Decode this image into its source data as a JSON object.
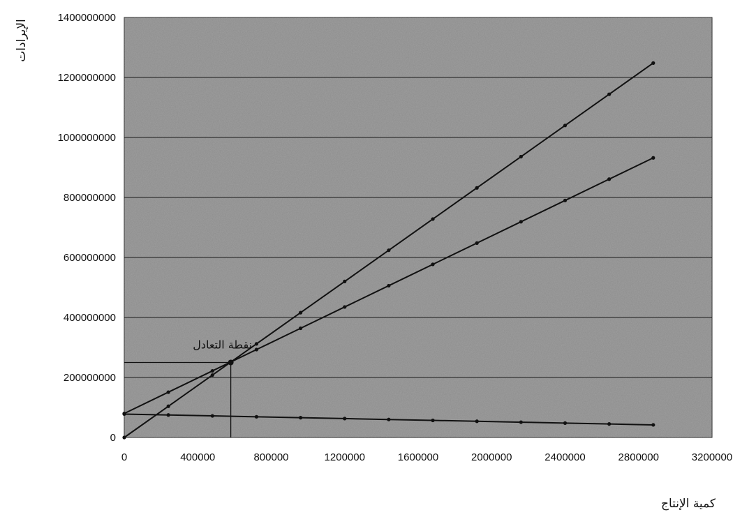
{
  "chart_data": {
    "type": "line",
    "title": "",
    "xlabel": "كمية الإنتاج",
    "ylabel": "الإيرادات",
    "xlim": [
      0,
      3200000
    ],
    "ylim": [
      0,
      1400000000
    ],
    "x_ticks": [
      "0",
      "400000",
      "800000",
      "1200000",
      "1600000",
      "2000000",
      "2400000",
      "2800000",
      "3200000"
    ],
    "y_ticks": [
      "0",
      "200000000",
      "400000000",
      "600000000",
      "800000000",
      "1000000000",
      "1200000000",
      "1400000000"
    ],
    "grid": "horizontal",
    "annotations": [
      {
        "text": "نقطة التعادل",
        "x": 580000,
        "y": 250000000
      }
    ],
    "series": [
      {
        "x": [
          0,
          240000,
          480000,
          720000,
          960000,
          1200000,
          1440000,
          1680000,
          1920000,
          2160000,
          2400000,
          2640000,
          2880000
        ],
        "values": [
          0,
          104000000,
          208000000,
          312000000,
          416000000,
          520000000,
          624000000,
          728000000,
          832000000,
          936000000,
          1040000000,
          1144000000,
          1248000000
        ]
      },
      {
        "x": [
          0,
          240000,
          480000,
          720000,
          960000,
          1200000,
          1440000,
          1680000,
          1920000,
          2160000,
          2400000,
          2640000,
          2880000
        ],
        "values": [
          80000000,
          151000000,
          222000000,
          293000000,
          364000000,
          435000000,
          506000000,
          577000000,
          648000000,
          719000000,
          790000000,
          861000000,
          932000000
        ]
      },
      {
        "x": [
          0,
          240000,
          480000,
          720000,
          960000,
          1200000,
          1440000,
          1680000,
          1920000,
          2160000,
          2400000,
          2640000,
          2880000
        ],
        "values": [
          78000000,
          75000000,
          72000000,
          69000000,
          66000000,
          63000000,
          60000000,
          57000000,
          54000000,
          51000000,
          48000000,
          45000000,
          42000000
        ]
      }
    ],
    "colors": {
      "plot_background": "#8c8c8c",
      "line": "#111111",
      "grid": "#1a1a1a"
    }
  }
}
